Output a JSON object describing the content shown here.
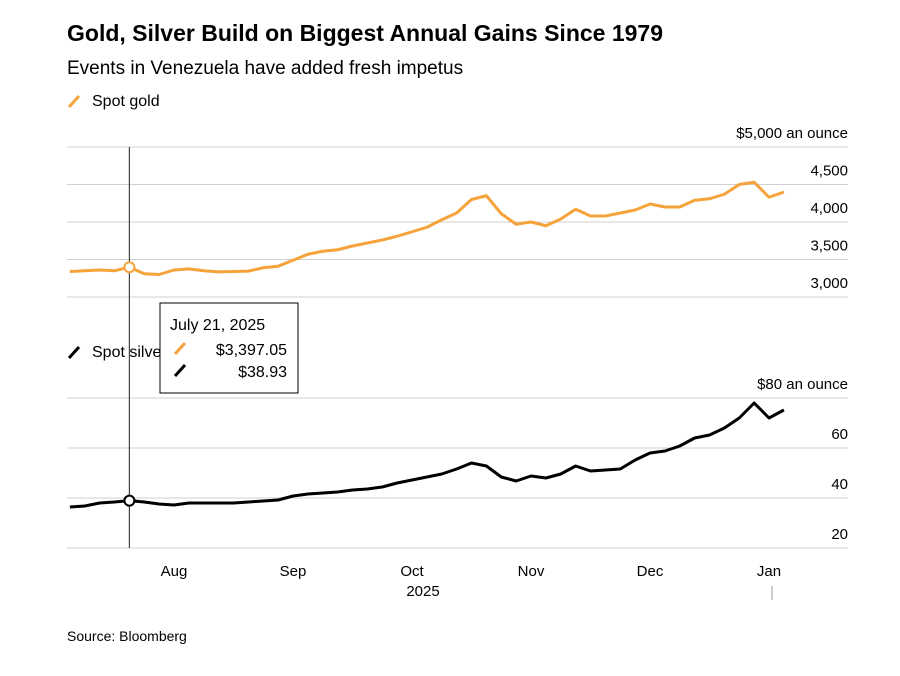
{
  "title": "Gold, Silver Build on Biggest Annual Gains Since 1979",
  "subtitle": "Events in Venezuela have added fresh impetus",
  "source": "Source: Bloomberg",
  "tooltip": {
    "date": "July 21, 2025",
    "rows": [
      "$3,397.05",
      "$38.93"
    ]
  },
  "chart_data": [
    {
      "type": "line",
      "series": [
        {
          "name": "Spot gold",
          "color": "#f5a33a",
          "values": [
            3340,
            3350,
            3360,
            3350,
            3397.05,
            3310,
            3300,
            3360,
            3375,
            3350,
            3335,
            3340,
            3345,
            3390,
            3410,
            3490,
            3570,
            3610,
            3630,
            3680,
            3720,
            3760,
            3810,
            3870,
            3930,
            4030,
            4120,
            4300,
            4350,
            4110,
            3970,
            4000,
            3950,
            4040,
            4170,
            4080,
            4080,
            4120,
            4160,
            4240,
            4200,
            4200,
            4290,
            4310,
            4370,
            4500,
            4530,
            4330,
            4400
          ]
        }
      ],
      "ylim": [
        3000,
        5000
      ],
      "yticks": [
        {
          "value": 3000,
          "label": "3,000"
        },
        {
          "value": 3500,
          "label": "3,500"
        },
        {
          "value": 4000,
          "label": "4,000"
        },
        {
          "value": 4500,
          "label": "4,500"
        },
        {
          "value": 5000,
          "label": "$5,000 an ounce"
        }
      ],
      "grid": true
    },
    {
      "type": "line",
      "categories": [
        null,
        null,
        null,
        null,
        null,
        null,
        null,
        "Aug",
        null,
        null,
        null,
        null,
        null,
        null,
        null,
        "Sep",
        null,
        null,
        null,
        null,
        null,
        null,
        null,
        "Oct",
        null,
        null,
        null,
        null,
        null,
        null,
        null,
        "Nov",
        null,
        null,
        null,
        null,
        null,
        null,
        null,
        "Dec",
        null,
        null,
        null,
        null,
        null,
        null,
        null,
        "Jan",
        null
      ],
      "xlabel": "2025",
      "series": [
        {
          "name": "Spot silver",
          "color": "#000000",
          "values": [
            36.4,
            36.8,
            38,
            38.4,
            38.93,
            38.4,
            37.6,
            37.2,
            38,
            38,
            38,
            38,
            38.4,
            38.8,
            39.2,
            40.8,
            41.6,
            42,
            42.4,
            43.2,
            43.6,
            44.4,
            46,
            47.2,
            48.4,
            49.6,
            51.6,
            54,
            52.8,
            48.4,
            46.8,
            48.8,
            48,
            49.6,
            52.8,
            50.8,
            51.2,
            51.6,
            55.2,
            58,
            58.8,
            60.8,
            64,
            65.2,
            68,
            72,
            78,
            72,
            75.2
          ]
        }
      ],
      "ylim": [
        20,
        80
      ],
      "yticks": [
        20,
        40,
        60,
        {
          "value": 80,
          "label": "$80 an ounce"
        }
      ],
      "grid": true
    }
  ]
}
